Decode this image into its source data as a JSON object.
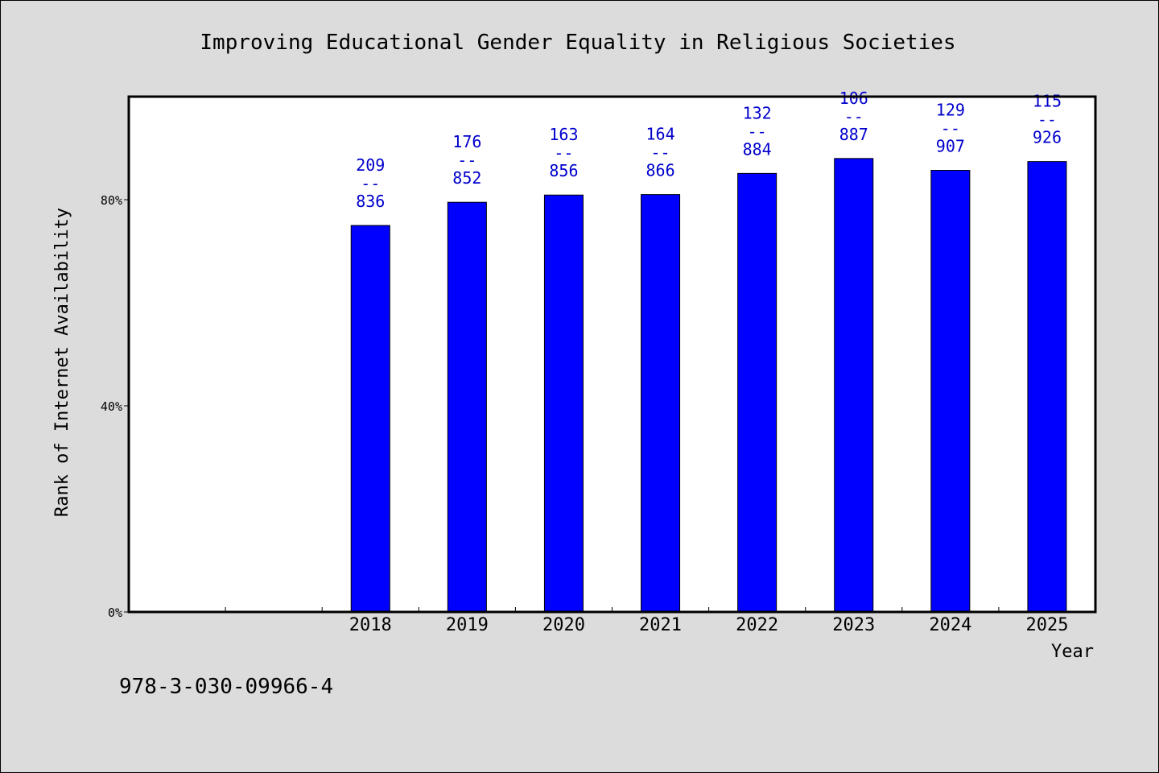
{
  "chart_data": {
    "type": "bar",
    "title": "Improving Educational Gender Equality in Religious Societies",
    "xlabel": "Year",
    "ylabel": "Rank of Internet Availability",
    "categories": [
      "",
      "",
      "2018",
      "2019",
      "2020",
      "2021",
      "2022",
      "2023",
      "2024",
      "2025"
    ],
    "series": [
      {
        "values": [
          null,
          null,
          75.0,
          79.5,
          80.9,
          81.0,
          85.1,
          88.0,
          85.7,
          87.4
        ],
        "labels_top": [
          null,
          null,
          "209",
          "176",
          "163",
          "164",
          "132",
          "106",
          "129",
          "115"
        ],
        "labels_bottom": [
          null,
          null,
          "836",
          "852",
          "856",
          "866",
          "884",
          "887",
          "907",
          "926"
        ]
      }
    ],
    "label_separator": "--",
    "yticks": [
      "0%",
      "40%",
      "80%"
    ],
    "ytick_values": [
      0,
      40,
      80
    ],
    "ylim": [
      0,
      100
    ],
    "grid": false,
    "bar_color": "#0000ff",
    "label_color": "#0000cc"
  },
  "footer": {
    "isbn": "978-3-030-09966-4"
  }
}
